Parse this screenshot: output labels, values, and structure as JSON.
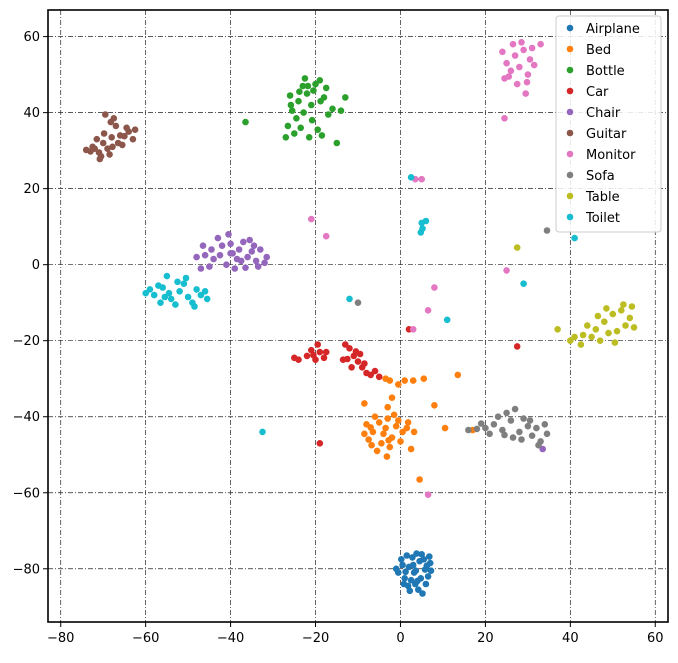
{
  "chart_data": {
    "type": "scatter",
    "title": "",
    "xlabel": "",
    "ylabel": "",
    "xlim": [
      -83,
      63
    ],
    "ylim": [
      -94,
      67
    ],
    "grid": true,
    "legend_position": "top-right",
    "x_ticks": [
      -80,
      -60,
      -40,
      -20,
      0,
      20,
      40,
      60
    ],
    "y_ticks": [
      -80,
      -60,
      -40,
      -20,
      0,
      20,
      40,
      60
    ],
    "series": [
      {
        "name": "Airplane",
        "color": "#1f77b4",
        "points": [
          [
            3.2,
            -81.0
          ],
          [
            2.0,
            -79.5
          ],
          [
            4.5,
            -78.0
          ],
          [
            5.8,
            -80.2
          ],
          [
            1.0,
            -82.5
          ],
          [
            3.5,
            -84.0
          ],
          [
            6.5,
            -82.0
          ],
          [
            0.5,
            -79.0
          ],
          [
            2.8,
            -77.0
          ],
          [
            5.0,
            -76.2
          ],
          [
            7.0,
            -78.5
          ],
          [
            -0.5,
            -81.0
          ],
          [
            1.8,
            -84.5
          ],
          [
            4.2,
            -85.5
          ],
          [
            6.0,
            -84.0
          ],
          [
            3.0,
            -79.0
          ],
          [
            0.2,
            -77.5
          ],
          [
            7.2,
            -80.5
          ],
          [
            2.5,
            -83.0
          ],
          [
            4.8,
            -82.5
          ],
          [
            -1.0,
            -80.0
          ],
          [
            5.5,
            -77.5
          ],
          [
            3.8,
            -76.0
          ],
          [
            1.5,
            -76.5
          ],
          [
            6.8,
            -76.8
          ],
          [
            2.2,
            -85.8
          ],
          [
            5.2,
            -86.5
          ],
          [
            0.8,
            -84.0
          ],
          [
            3.6,
            -80.5
          ],
          [
            4.0,
            -83.2
          ],
          [
            1.2,
            -80.8
          ],
          [
            6.2,
            -79.2
          ]
        ]
      },
      {
        "name": "Bed",
        "color": "#ff7f0e",
        "points": [
          [
            -8.0,
            -42.0
          ],
          [
            -6.5,
            -44.0
          ],
          [
            -5.0,
            -41.5
          ],
          [
            -3.5,
            -43.0
          ],
          [
            -2.0,
            -45.5
          ],
          [
            -7.5,
            -46.0
          ],
          [
            -4.5,
            -47.0
          ],
          [
            -1.0,
            -42.5
          ],
          [
            0.5,
            -44.0
          ],
          [
            -6.0,
            -40.0
          ],
          [
            -3.0,
            -40.5
          ],
          [
            -8.5,
            -44.5
          ],
          [
            -2.5,
            -48.0
          ],
          [
            -5.5,
            -49.0
          ],
          [
            0.0,
            -46.5
          ],
          [
            1.5,
            -43.0
          ],
          [
            -4.0,
            -44.5
          ],
          [
            -7.0,
            -42.8
          ],
          [
            -1.5,
            -39.5
          ],
          [
            -3.2,
            -50.5
          ],
          [
            2.5,
            -48.5
          ],
          [
            -0.5,
            -41.0
          ],
          [
            -6.8,
            -47.5
          ],
          [
            -2.8,
            -46.2
          ],
          [
            -3.0,
            -37.5
          ],
          [
            -2.0,
            -35.0
          ],
          [
            -8.5,
            -36.5
          ],
          [
            -3.5,
            -30.0
          ],
          [
            -2.5,
            -30.5
          ],
          [
            -0.5,
            -31.5
          ],
          [
            1.0,
            -30.5
          ],
          [
            3.0,
            -30.5
          ],
          [
            5.5,
            -30.0
          ],
          [
            8.0,
            -37.0
          ],
          [
            10.5,
            -43.0
          ],
          [
            13.5,
            -29.0
          ],
          [
            17.0,
            -43.5
          ],
          [
            4.5,
            -56.5
          ],
          [
            3.2,
            -44.0
          ],
          [
            1.8,
            -41.5
          ]
        ]
      },
      {
        "name": "Bottle",
        "color": "#2ca02c",
        "points": [
          [
            -22.0,
            45.0
          ],
          [
            -20.0,
            47.5
          ],
          [
            -18.0,
            44.0
          ],
          [
            -24.0,
            43.0
          ],
          [
            -25.5,
            40.5
          ],
          [
            -21.0,
            42.0
          ],
          [
            -19.0,
            48.5
          ],
          [
            -23.0,
            47.0
          ],
          [
            -26.0,
            44.5
          ],
          [
            -22.5,
            49.0
          ],
          [
            -20.5,
            45.8
          ],
          [
            -24.5,
            38.5
          ],
          [
            -26.5,
            36.5
          ],
          [
            -25.0,
            34.5
          ],
          [
            -21.5,
            33.5
          ],
          [
            -19.5,
            35.5
          ],
          [
            -18.5,
            34.0
          ],
          [
            -17.0,
            39.5
          ],
          [
            -16.0,
            41.0
          ],
          [
            -14.0,
            40.5
          ],
          [
            -13.0,
            44.0
          ],
          [
            -27.0,
            33.5
          ],
          [
            -23.5,
            36.0
          ],
          [
            -20.8,
            38.0
          ],
          [
            -17.5,
            46.5
          ],
          [
            -21.8,
            47.0
          ],
          [
            -23.8,
            45.5
          ],
          [
            -18.8,
            43.0
          ],
          [
            -25.8,
            42.0
          ],
          [
            -22.8,
            40.0
          ],
          [
            -36.5,
            37.5
          ],
          [
            -15.0,
            32.0
          ]
        ]
      },
      {
        "name": "Car",
        "color": "#d62728",
        "points": [
          [
            -12.0,
            -22.0
          ],
          [
            -11.0,
            -24.0
          ],
          [
            -13.0,
            -21.0
          ],
          [
            -10.0,
            -25.5
          ],
          [
            -9.0,
            -27.0
          ],
          [
            -8.0,
            -28.5
          ],
          [
            -7.0,
            -29.0
          ],
          [
            -6.0,
            -28.0
          ],
          [
            -5.0,
            -29.5
          ],
          [
            -12.5,
            -24.8
          ],
          [
            -10.5,
            -22.8
          ],
          [
            -9.5,
            -23.5
          ],
          [
            -11.5,
            -27.0
          ],
          [
            -13.5,
            -25.0
          ],
          [
            -19.0,
            -23.0
          ],
          [
            -20.0,
            -25.0
          ],
          [
            -21.0,
            -22.5
          ],
          [
            -18.0,
            -24.5
          ],
          [
            -19.5,
            -21.0
          ],
          [
            -22.0,
            -24.0
          ],
          [
            -24.0,
            -25.0
          ],
          [
            -25.0,
            -24.5
          ],
          [
            -17.5,
            -23.0
          ],
          [
            -20.5,
            -23.8
          ],
          [
            -19.0,
            -47.0
          ],
          [
            2.0,
            -17.0
          ],
          [
            27.5,
            -21.5
          ],
          [
            -8.5,
            -26.0
          ]
        ]
      },
      {
        "name": "Chair",
        "color": "#9467bd",
        "points": [
          [
            -42.0,
            5.0
          ],
          [
            -40.0,
            3.0
          ],
          [
            -38.0,
            4.0
          ],
          [
            -36.0,
            2.0
          ],
          [
            -34.0,
            1.0
          ],
          [
            -32.0,
            0.5
          ],
          [
            -33.0,
            4.0
          ],
          [
            -44.0,
            1.5
          ],
          [
            -46.0,
            2.5
          ],
          [
            -48.0,
            2.0
          ],
          [
            -45.0,
            -0.5
          ],
          [
            -41.0,
            0.0
          ],
          [
            -39.0,
            -1.0
          ],
          [
            -37.0,
            6.0
          ],
          [
            -35.0,
            3.5
          ],
          [
            -43.0,
            7.0
          ],
          [
            -40.5,
            8.0
          ],
          [
            -38.5,
            1.5
          ],
          [
            -36.5,
            -0.8
          ],
          [
            -34.5,
            5.0
          ],
          [
            -46.5,
            5.0
          ],
          [
            -44.5,
            4.0
          ],
          [
            -42.5,
            2.5
          ],
          [
            -40.0,
            5.5
          ],
          [
            -47.0,
            -1.0
          ],
          [
            -37.5,
            1.0
          ],
          [
            -35.5,
            6.5
          ],
          [
            -39.5,
            3.0
          ],
          [
            -31.5,
            2.0
          ],
          [
            -33.5,
            -0.5
          ],
          [
            33.5,
            -48.5
          ]
        ]
      },
      {
        "name": "Guitar",
        "color": "#8c564b",
        "points": [
          [
            -70.0,
            32.0
          ],
          [
            -68.0,
            33.5
          ],
          [
            -66.0,
            34.0
          ],
          [
            -64.0,
            35.0
          ],
          [
            -63.0,
            33.0
          ],
          [
            -67.0,
            36.5
          ],
          [
            -65.5,
            31.5
          ],
          [
            -69.0,
            30.5
          ],
          [
            -71.0,
            29.5
          ],
          [
            -72.0,
            30.5
          ],
          [
            -73.0,
            29.8
          ],
          [
            -74.0,
            30.2
          ],
          [
            -70.5,
            28.5
          ],
          [
            -68.5,
            29.0
          ],
          [
            -67.5,
            38.5
          ],
          [
            -69.5,
            39.5
          ],
          [
            -64.5,
            36.0
          ],
          [
            -62.5,
            35.5
          ],
          [
            -66.5,
            32.0
          ],
          [
            -71.5,
            33.0
          ],
          [
            -69.8,
            34.5
          ],
          [
            -67.8,
            31.0
          ],
          [
            -65.0,
            33.8
          ],
          [
            -70.8,
            27.8
          ],
          [
            -68.2,
            37.5
          ],
          [
            -72.5,
            31.0
          ]
        ]
      },
      {
        "name": "Monitor",
        "color": "#e377c2",
        "points": [
          [
            25.0,
            53.0
          ],
          [
            27.0,
            55.0
          ],
          [
            29.0,
            56.5
          ],
          [
            31.0,
            57.0
          ],
          [
            33.0,
            58.0
          ],
          [
            26.0,
            51.0
          ],
          [
            28.0,
            52.0
          ],
          [
            30.0,
            50.0
          ],
          [
            24.5,
            49.0
          ],
          [
            27.5,
            47.5
          ],
          [
            29.5,
            45.0
          ],
          [
            26.5,
            58.0
          ],
          [
            28.5,
            58.5
          ],
          [
            30.5,
            54.0
          ],
          [
            24.0,
            56.0
          ],
          [
            25.5,
            49.5
          ],
          [
            31.5,
            52.5
          ],
          [
            29.8,
            48.0
          ],
          [
            24.5,
            38.5
          ],
          [
            3.5,
            22.5
          ],
          [
            5.0,
            22.5
          ],
          [
            -21.0,
            12.0
          ],
          [
            -17.5,
            7.5
          ],
          [
            25.0,
            -1.5
          ],
          [
            8.0,
            -6.0
          ],
          [
            6.5,
            -12.0
          ],
          [
            3.0,
            -17.0
          ],
          [
            6.5,
            -60.5
          ]
        ]
      },
      {
        "name": "Sofa",
        "color": "#7f7f7f",
        "points": [
          [
            22.0,
            -42.0
          ],
          [
            24.0,
            -43.5
          ],
          [
            26.0,
            -41.0
          ],
          [
            28.0,
            -44.0
          ],
          [
            30.0,
            -42.5
          ],
          [
            32.0,
            -43.0
          ],
          [
            20.0,
            -43.0
          ],
          [
            18.0,
            -43.2
          ],
          [
            23.0,
            -40.0
          ],
          [
            25.0,
            -39.0
          ],
          [
            27.0,
            -38.0
          ],
          [
            29.0,
            -40.5
          ],
          [
            31.0,
            -45.0
          ],
          [
            33.0,
            -46.5
          ],
          [
            34.0,
            -42.0
          ],
          [
            21.0,
            -44.5
          ],
          [
            19.0,
            -41.8
          ],
          [
            26.5,
            -45.5
          ],
          [
            28.5,
            -46.0
          ],
          [
            24.5,
            -44.8
          ],
          [
            30.5,
            -41.0
          ],
          [
            32.5,
            -47.5
          ],
          [
            16.0,
            -43.5
          ],
          [
            34.5,
            -44.5
          ],
          [
            -10.0,
            -10.0
          ],
          [
            34.5,
            9.0
          ]
        ]
      },
      {
        "name": "Table",
        "color": "#bcbd22",
        "points": [
          [
            48.0,
            -15.0
          ],
          [
            50.0,
            -13.0
          ],
          [
            52.0,
            -12.0
          ],
          [
            54.0,
            -14.0
          ],
          [
            46.0,
            -17.0
          ],
          [
            44.0,
            -16.0
          ],
          [
            49.0,
            -18.0
          ],
          [
            51.0,
            -17.5
          ],
          [
            53.0,
            -16.0
          ],
          [
            45.0,
            -19.0
          ],
          [
            47.0,
            -20.0
          ],
          [
            43.0,
            -18.5
          ],
          [
            52.5,
            -10.5
          ],
          [
            55.0,
            -16.5
          ],
          [
            41.0,
            -19.0
          ],
          [
            40.0,
            -20.0
          ],
          [
            37.0,
            -17.0
          ],
          [
            42.5,
            -21.0
          ],
          [
            50.5,
            -20.5
          ],
          [
            48.5,
            -11.5
          ],
          [
            46.5,
            -13.5
          ],
          [
            54.5,
            -11.0
          ],
          [
            27.5,
            4.5
          ]
        ]
      },
      {
        "name": "Toilet",
        "color": "#17becf",
        "points": [
          [
            -58.0,
            -8.0
          ],
          [
            -56.0,
            -6.0
          ],
          [
            -54.0,
            -9.0
          ],
          [
            -52.0,
            -7.0
          ],
          [
            -50.0,
            -8.5
          ],
          [
            -48.0,
            -6.5
          ],
          [
            -55.0,
            -3.0
          ],
          [
            -57.0,
            -5.5
          ],
          [
            -53.0,
            -10.5
          ],
          [
            -51.0,
            -5.0
          ],
          [
            -49.0,
            -10.0
          ],
          [
            -59.0,
            -6.5
          ],
          [
            -60.0,
            -7.5
          ],
          [
            -47.0,
            -8.0
          ],
          [
            -46.0,
            -7.0
          ],
          [
            -55.5,
            -8.5
          ],
          [
            -52.5,
            -4.5
          ],
          [
            -50.5,
            -3.5
          ],
          [
            -48.5,
            -11.0
          ],
          [
            -54.5,
            -7.5
          ],
          [
            -56.5,
            -10.0
          ],
          [
            -45.5,
            -9.0
          ],
          [
            -12.0,
            -9.0
          ],
          [
            -32.5,
            -44.0
          ],
          [
            2.5,
            23.0
          ],
          [
            5.0,
            11.0
          ],
          [
            6.0,
            11.5
          ],
          [
            4.8,
            8.5
          ],
          [
            5.2,
            9.5
          ],
          [
            11.0,
            -14.5
          ],
          [
            29.0,
            -5.0
          ],
          [
            41.0,
            7.0
          ]
        ]
      }
    ]
  }
}
